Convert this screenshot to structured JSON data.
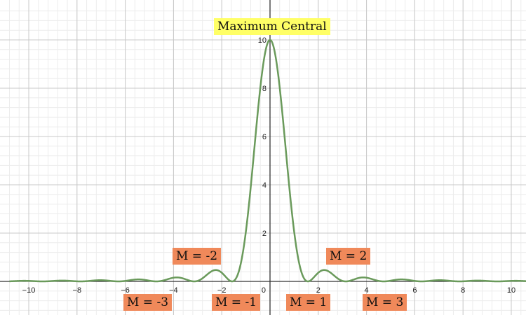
{
  "chart_data": {
    "type": "line",
    "title": "",
    "xlabel": "",
    "ylabel": "",
    "xlim": [
      -10.8,
      10.8
    ],
    "ylim": [
      -1.35,
      11.5
    ],
    "x_ticks": [
      -10,
      -8,
      -6,
      -4,
      -2,
      0,
      2,
      4,
      6,
      8,
      10
    ],
    "y_ticks": [
      2,
      4,
      6,
      8,
      10
    ],
    "grid": true,
    "minor_grid": true,
    "series": [
      {
        "color": "#6a9a5b",
        "function": "10*(sin(2x)/(2x))^2",
        "peak": {
          "x": 0,
          "y": 10
        },
        "zeros": [
          -1.57,
          1.57,
          -3.14,
          3.14,
          -4.71,
          4.71
        ],
        "secondary_peaks": [
          {
            "x": -2.25,
            "y": 0.47
          },
          {
            "x": 2.25,
            "y": 0.47
          },
          {
            "x": -3.86,
            "y": 0.16
          },
          {
            "x": 3.86,
            "y": 0.16
          }
        ]
      }
    ],
    "annotations": [
      {
        "id": "central",
        "text": "Maximum Central"
      },
      {
        "id": "m_neg2",
        "text": "M = -2"
      },
      {
        "id": "m_pos2",
        "text": "M = 2"
      },
      {
        "id": "m_neg3",
        "text": "M = -3"
      },
      {
        "id": "m_neg1",
        "text": "M = -1"
      },
      {
        "id": "m_pos1",
        "text": "M = 1"
      },
      {
        "id": "m_pos3",
        "text": "M = 3"
      }
    ]
  },
  "colors": {
    "curve": "#6a9a5b",
    "order_label_bg": "#f0895a",
    "title_label_bg": "#ffff66",
    "axis": "#333333",
    "major_grid": "#c8c8c8",
    "minor_grid": "#ececec"
  }
}
